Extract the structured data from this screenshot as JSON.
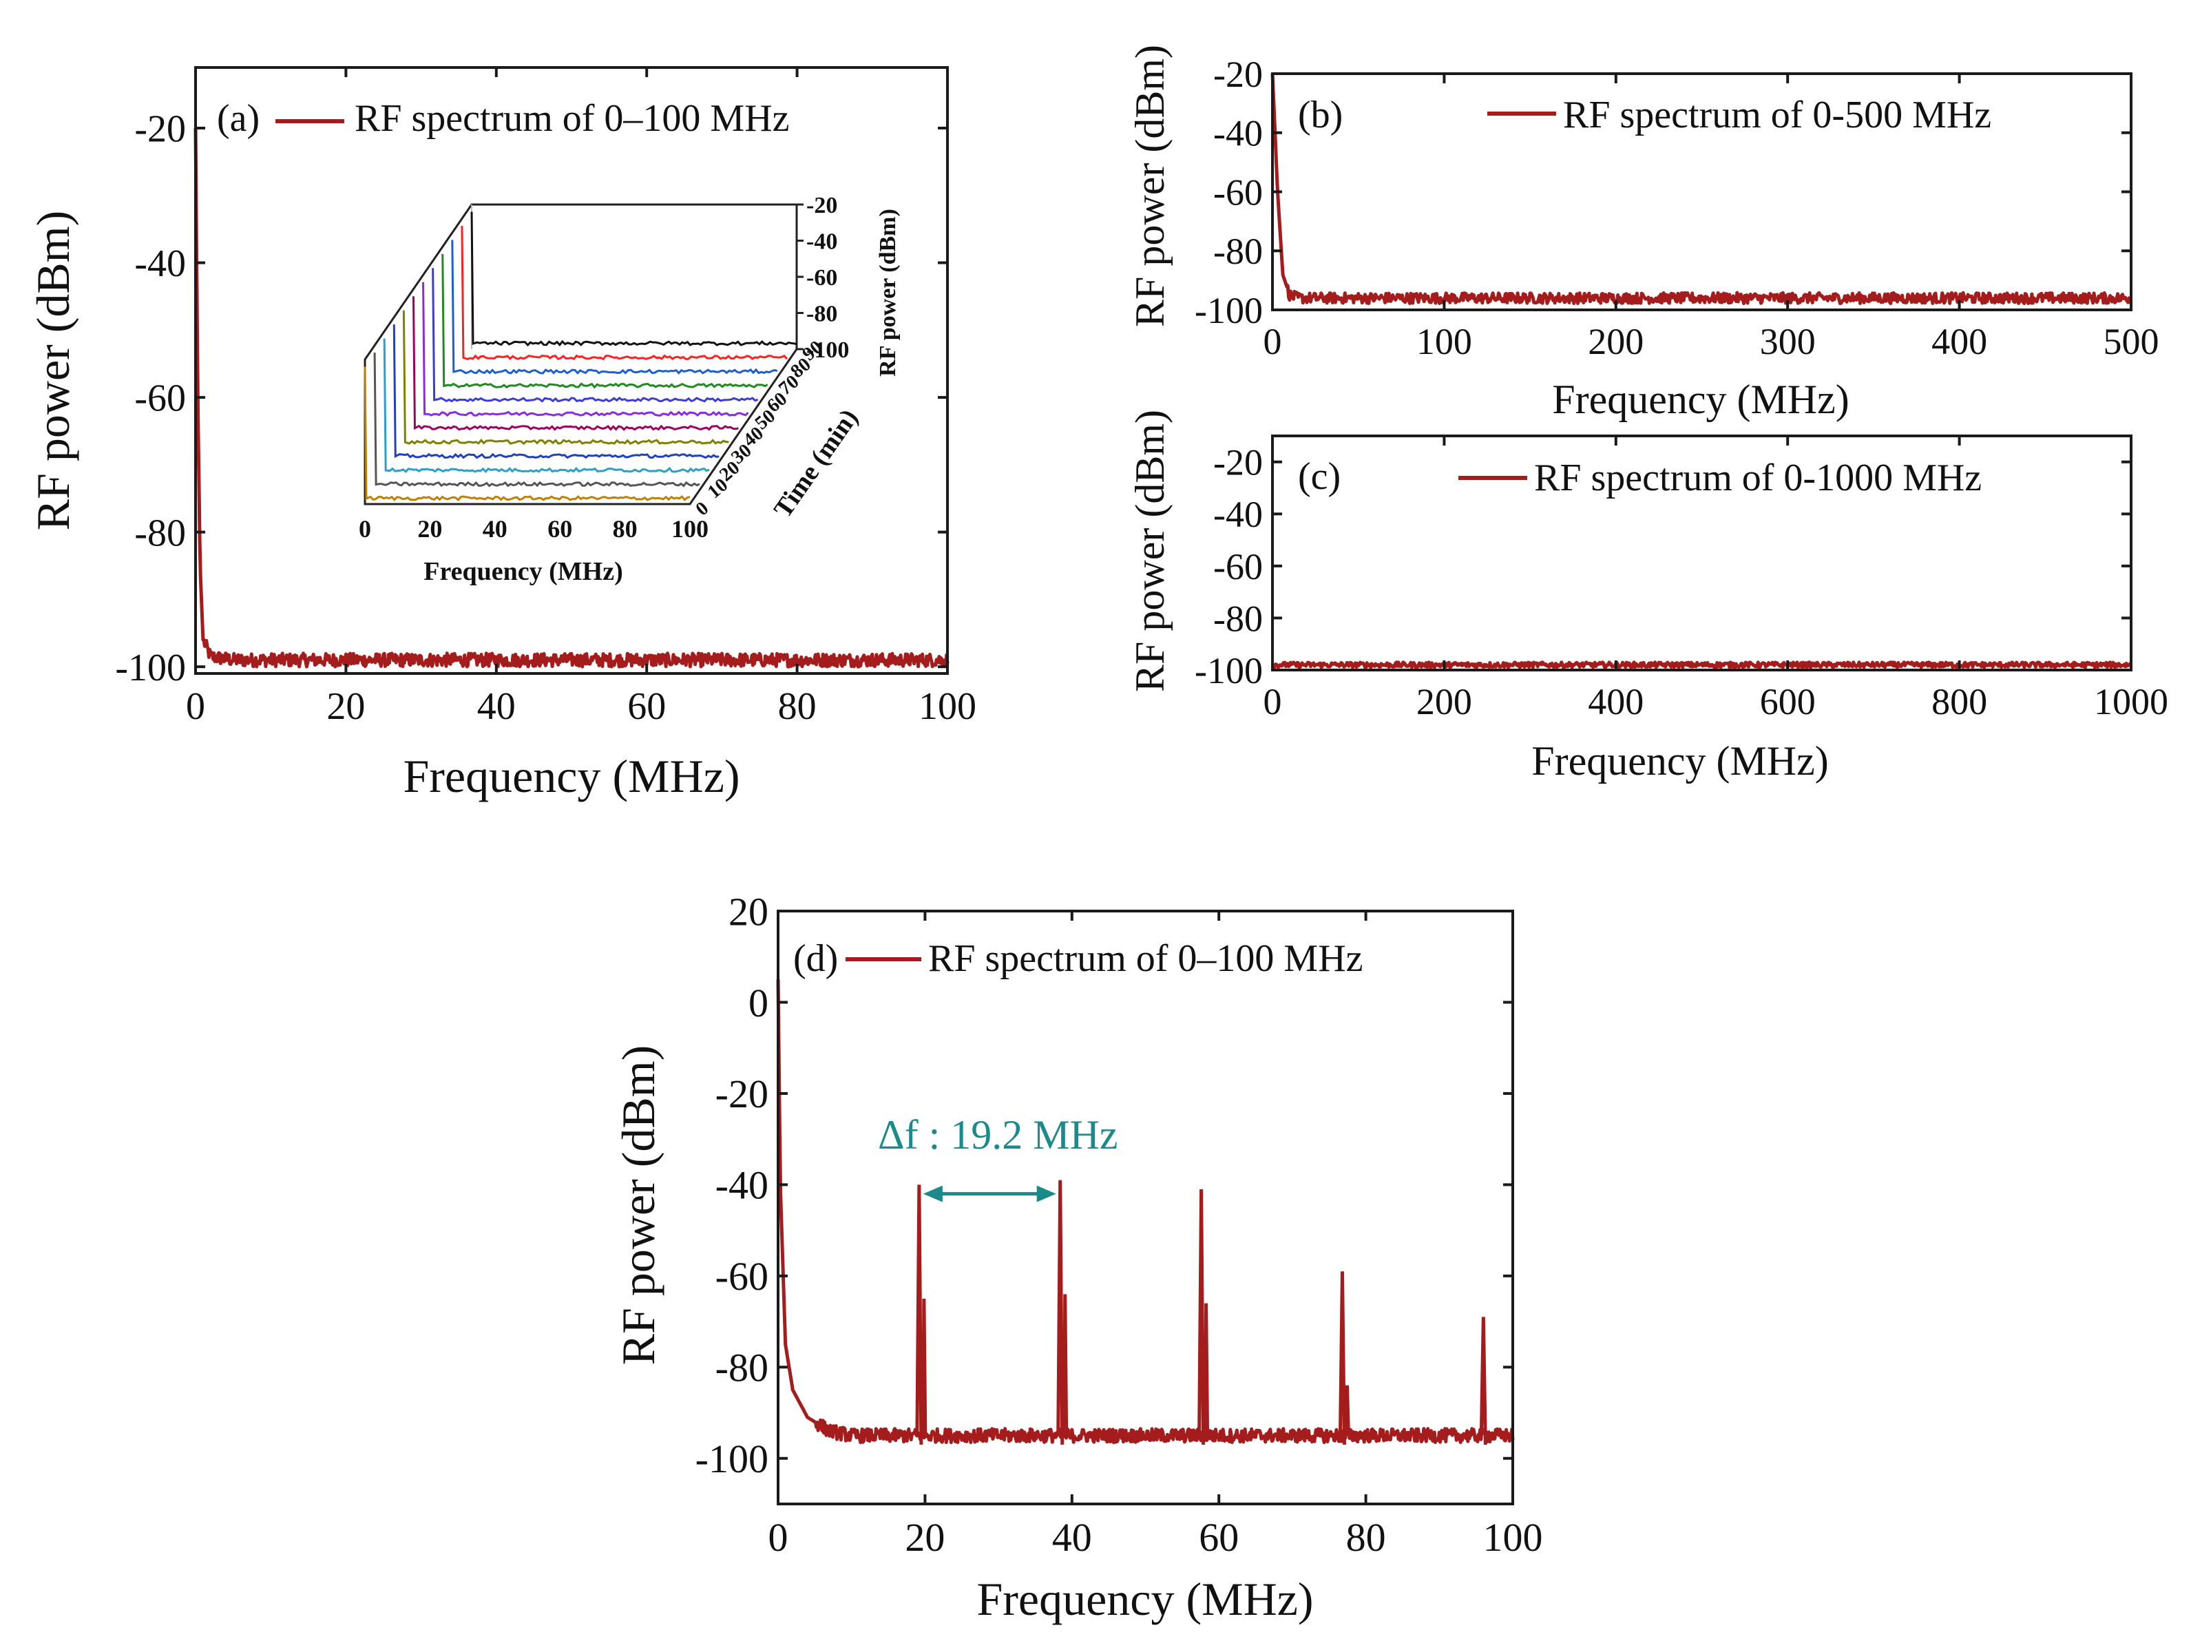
{
  "figure": {
    "trace_color": "#a51c1c",
    "annotation_color": "#1a8a8a"
  },
  "chart_data": [
    {
      "id": "a",
      "type": "line",
      "panel_label": "(a)",
      "legend": "RF spectrum of 0–100 MHz",
      "xlabel": "Frequency (MHz)",
      "ylabel": "RF power (dBm)",
      "xlim": [
        0,
        100
      ],
      "ylim": [
        -101,
        -11
      ],
      "xticks": [
        0,
        20,
        40,
        60,
        80,
        100
      ],
      "yticks": [
        -100,
        -80,
        -60,
        -40,
        -20
      ],
      "xtick_labels": [
        "0",
        "20",
        "40",
        "60",
        "80",
        "100"
      ],
      "ytick_labels": [
        "-100",
        "-80",
        "-60",
        "-40",
        "-20"
      ],
      "series": [
        {
          "name": "RF spectrum of 0–100 MHz",
          "x": [
            0,
            0.3,
            0.6,
            1,
            2,
            5,
            20,
            50,
            80,
            100
          ],
          "y": [
            -20,
            -60,
            -85,
            -96,
            -98.5,
            -99,
            -99,
            -99,
            -99,
            -99
          ],
          "noise_floor": -99,
          "noise_amp": 1.0
        }
      ],
      "inset": {
        "xlabel": "Frequency (MHz)",
        "ylabel": "RF power (dBm)",
        "tlabel": "Time (min)",
        "xticks": [
          "0",
          "20",
          "40",
          "60",
          "80",
          "100"
        ],
        "zticks": [
          "-20",
          "-40",
          "-60",
          "-80",
          "-100"
        ],
        "time_labels": [
          "0",
          "10",
          "20",
          "30",
          "40",
          "50",
          "60",
          "70",
          "80",
          "90"
        ],
        "trace_colors": [
          "#c08000",
          "#555555",
          "#2aa0c8",
          "#2040c0",
          "#808000",
          "#a00060",
          "#8a2be2",
          "#3b3bd6",
          "#208a20",
          "#1a60d0",
          "#ff2020",
          "#111111"
        ]
      }
    },
    {
      "id": "b",
      "type": "line",
      "panel_label": "(b)",
      "legend": "RF spectrum of 0-500 MHz",
      "xlabel": "Frequency (MHz)",
      "ylabel": "RF power (dBm)",
      "xlim": [
        0,
        500
      ],
      "ylim": [
        -100,
        -20
      ],
      "xticks": [
        0,
        100,
        200,
        300,
        400,
        500
      ],
      "yticks": [
        -100,
        -80,
        -60,
        -40,
        -20
      ],
      "xtick_labels": [
        "0",
        "100",
        "200",
        "300",
        "400",
        "500"
      ],
      "ytick_labels": [
        "-100",
        "-80",
        "-60",
        "-40",
        "-20"
      ],
      "series": [
        {
          "name": "RF spectrum of 0-500 MHz",
          "x": [
            0,
            3,
            6,
            10,
            15,
            100,
            300,
            500
          ],
          "y": [
            -20,
            -60,
            -88,
            -95,
            -96,
            -96,
            -96,
            -96
          ],
          "noise_floor": -96,
          "noise_amp": 1.8
        }
      ]
    },
    {
      "id": "c",
      "type": "line",
      "panel_label": "(c)",
      "legend": "RF spectrum of 0-1000 MHz",
      "xlabel": "Frequency (MHz)",
      "ylabel": "RF power (dBm)",
      "xlim": [
        0,
        1000
      ],
      "ylim": [
        -100,
        -10
      ],
      "xticks": [
        0,
        200,
        400,
        600,
        800,
        1000
      ],
      "yticks": [
        -100,
        -80,
        -60,
        -40,
        -20
      ],
      "xtick_labels": [
        "0",
        "200",
        "400",
        "600",
        "800",
        "1000"
      ],
      "ytick_labels": [
        "-100",
        "-80",
        "-60",
        "-40",
        "-20"
      ],
      "series": [
        {
          "name": "RF spectrum of 0-1000 MHz",
          "x": [
            0,
            1000
          ],
          "y": [
            -98,
            -98
          ],
          "noise_floor": -97.5,
          "noise_amp": 1.0
        }
      ]
    },
    {
      "id": "d",
      "type": "line",
      "panel_label": "(d)",
      "legend": "RF spectrum of 0–100 MHz",
      "xlabel": "Frequency (MHz)",
      "ylabel": "RF power (dBm)",
      "xlim": [
        0,
        100
      ],
      "ylim": [
        -110,
        20
      ],
      "xticks": [
        0,
        20,
        40,
        60,
        80,
        100
      ],
      "yticks": [
        -100,
        -80,
        -60,
        -40,
        -20,
        0,
        20
      ],
      "xtick_labels": [
        "0",
        "20",
        "40",
        "60",
        "80",
        "100"
      ],
      "ytick_labels": [
        "-100",
        "-80",
        "-60",
        "-40",
        "-20",
        "0",
        "20"
      ],
      "series": [
        {
          "name": "RF spectrum of 0–100 MHz",
          "x": [
            0,
            0.3,
            1,
            2,
            4,
            7,
            10,
            30,
            60,
            100
          ],
          "y": [
            5,
            -40,
            -75,
            -85,
            -91,
            -94,
            -95,
            -95,
            -95,
            -95
          ],
          "noise_floor": -95,
          "noise_amp": 1.5
        }
      ],
      "peaks": [
        {
          "x": 19.2,
          "y": -40
        },
        {
          "x": 38.4,
          "y": -39
        },
        {
          "x": 57.6,
          "y": -41
        },
        {
          "x": 76.8,
          "y": -59
        },
        {
          "x": 96.0,
          "y": -69
        }
      ],
      "annotation": {
        "label": "Δf : 19.2 MHz",
        "x_start": 19.2,
        "x_end": 38.4,
        "y": -42
      }
    }
  ]
}
